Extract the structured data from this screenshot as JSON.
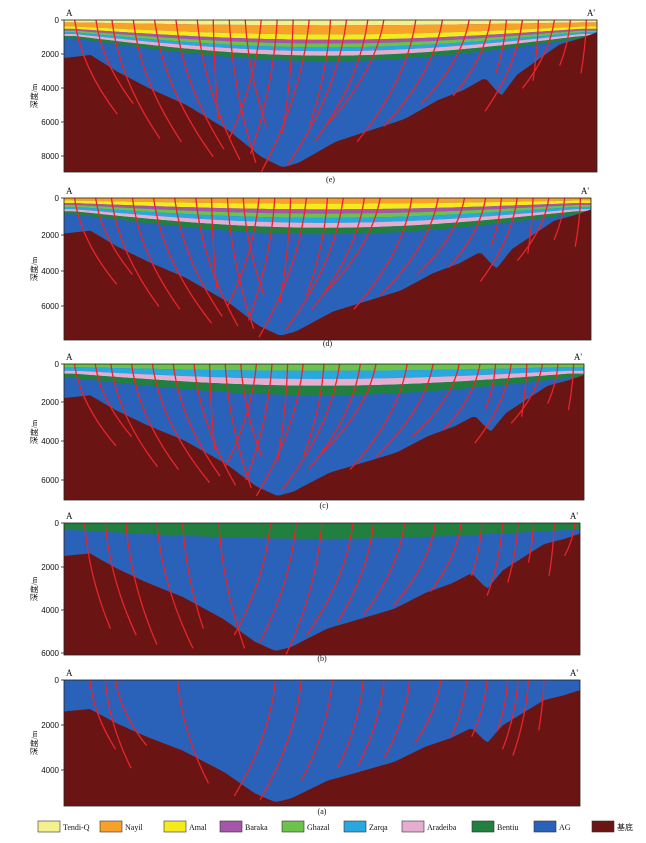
{
  "y_axis_label": "深度/m",
  "colors": {
    "Tendi-Q": "#f4f08e",
    "Nayil": "#f7a12a",
    "Amal": "#f4ea1c",
    "Baraka": "#a656a8",
    "Ghazal": "#6cc24a",
    "Zarqa": "#29a8df",
    "Aradeiba": "#e5aed0",
    "Bentiu": "#21803f",
    "AG": "#2a62ba",
    "basement": "#6b1414",
    "fault": "#e8242b"
  },
  "legend": [
    {
      "key": "Tendi-Q",
      "label": "Tendi-Q"
    },
    {
      "key": "Nayil",
      "label": "Nayil"
    },
    {
      "key": "Amal",
      "label": "Amal"
    },
    {
      "key": "Baraka",
      "label": "Baraka"
    },
    {
      "key": "Ghazal",
      "label": "Ghazal"
    },
    {
      "key": "Zarqa",
      "label": "Zarqa"
    },
    {
      "key": "Aradeiba",
      "label": "Aradeiba"
    },
    {
      "key": "Bentiu",
      "label": "Bentiu"
    },
    {
      "key": "AG",
      "label": "AG"
    },
    {
      "key": "basement",
      "label": "基底"
    }
  ],
  "panels": [
    {
      "id": "e",
      "caption": "(e)",
      "end_left": "A",
      "end_right": "A'",
      "ticks": [
        "0",
        "2000",
        "4000",
        "6000",
        "8000"
      ],
      "max_depth": 9000,
      "layers": [
        "Tendi-Q",
        "Nayil",
        "Amal",
        "Baraka",
        "Ghazal",
        "Zarqa",
        "Aradeiba",
        "Bentiu",
        "AG"
      ]
    },
    {
      "id": "d",
      "caption": "(d)",
      "end_left": "A",
      "end_right": "A'",
      "ticks": [
        "0",
        "2000",
        "4000",
        "6000"
      ],
      "max_depth": 7500,
      "layers": [
        "Nayil",
        "Amal",
        "Baraka",
        "Ghazal",
        "Zarqa",
        "Aradeiba",
        "Bentiu",
        "AG"
      ]
    },
    {
      "id": "c",
      "caption": "(c)",
      "end_left": "A",
      "end_right": "A'",
      "ticks": [
        "0",
        "2000",
        "4000",
        "6000"
      ],
      "max_depth": 7000,
      "layers": [
        "Ghazal",
        "Zarqa",
        "Aradeiba",
        "Bentiu",
        "AG"
      ]
    },
    {
      "id": "b",
      "caption": "(b)",
      "end_left": "A",
      "end_right": "A'",
      "ticks": [
        "0",
        "2000",
        "4000",
        "6000"
      ],
      "max_depth": 6000,
      "layers": [
        "Bentiu",
        "AG"
      ]
    },
    {
      "id": "a",
      "caption": "(a)",
      "end_left": "A",
      "end_right": "A'",
      "ticks": [
        "0",
        "2000",
        "4000"
      ],
      "max_depth": 5800,
      "layers": [
        "AG"
      ]
    }
  ]
}
